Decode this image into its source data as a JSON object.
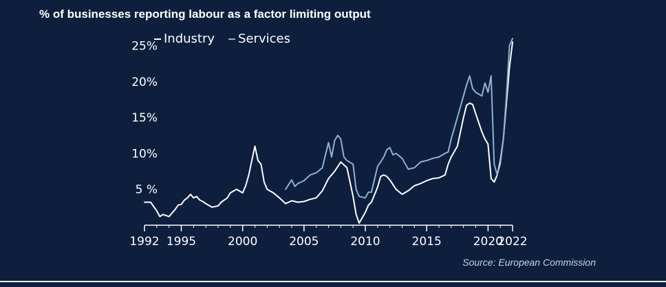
{
  "title": "% of businesses reporting labour as a factor limiting output",
  "source": "Source: European Commission",
  "colors": {
    "background": "#0d1f3d",
    "industry": "#ffffff",
    "services": "#8fb3cf"
  },
  "chart_data": {
    "type": "line",
    "title": "% of businesses reporting labour as a factor limiting output",
    "xlabel": "",
    "ylabel": "",
    "xlim": [
      1992,
      2022
    ],
    "ylim": [
      0,
      26
    ],
    "x_ticks": [
      1992,
      1995,
      2000,
      2005,
      2010,
      2015,
      2020,
      2022
    ],
    "y_ticks": [
      5,
      10,
      15,
      20,
      25
    ],
    "y_tick_labels": [
      "5 %",
      "10%",
      "15%",
      "20%",
      "25%"
    ],
    "legend": "top-left",
    "grid": false,
    "series": [
      {
        "name": "Industry",
        "color": "#ffffff",
        "points": [
          [
            1992.0,
            3.2
          ],
          [
            1992.5,
            3.2
          ],
          [
            1993.0,
            2.0
          ],
          [
            1993.25,
            1.2
          ],
          [
            1993.5,
            1.5
          ],
          [
            1994.0,
            1.2
          ],
          [
            1994.5,
            2.2
          ],
          [
            1994.75,
            2.8
          ],
          [
            1995.0,
            2.9
          ],
          [
            1995.25,
            3.5
          ],
          [
            1995.5,
            3.8
          ],
          [
            1995.75,
            4.3
          ],
          [
            1996.0,
            3.8
          ],
          [
            1996.25,
            4.0
          ],
          [
            1996.5,
            3.5
          ],
          [
            1996.75,
            3.3
          ],
          [
            1997.0,
            3.0
          ],
          [
            1997.5,
            2.5
          ],
          [
            1998.0,
            2.7
          ],
          [
            1998.25,
            3.2
          ],
          [
            1998.5,
            3.5
          ],
          [
            1998.75,
            3.8
          ],
          [
            1999.0,
            4.5
          ],
          [
            1999.5,
            5.0
          ],
          [
            2000.0,
            4.5
          ],
          [
            2000.25,
            5.5
          ],
          [
            2000.5,
            7.0
          ],
          [
            2000.75,
            9.0
          ],
          [
            2001.0,
            11.0
          ],
          [
            2001.25,
            9.0
          ],
          [
            2001.5,
            8.5
          ],
          [
            2001.75,
            6.0
          ],
          [
            2002.0,
            5.0
          ],
          [
            2002.5,
            4.5
          ],
          [
            2003.0,
            3.8
          ],
          [
            2003.5,
            3.0
          ],
          [
            2004.0,
            3.4
          ],
          [
            2004.5,
            3.2
          ],
          [
            2005.0,
            3.3
          ],
          [
            2005.5,
            3.6
          ],
          [
            2006.0,
            3.8
          ],
          [
            2006.5,
            4.8
          ],
          [
            2007.0,
            6.5
          ],
          [
            2007.5,
            7.5
          ],
          [
            2008.0,
            8.8
          ],
          [
            2008.5,
            8.0
          ],
          [
            2009.0,
            4.0
          ],
          [
            2009.25,
            1.5
          ],
          [
            2009.5,
            0.3
          ],
          [
            2010.0,
            1.8
          ],
          [
            2010.25,
            2.8
          ],
          [
            2010.5,
            3.2
          ],
          [
            2011.0,
            5.3
          ],
          [
            2011.25,
            6.8
          ],
          [
            2011.5,
            7.0
          ],
          [
            2011.75,
            6.8
          ],
          [
            2012.0,
            6.3
          ],
          [
            2012.5,
            5.0
          ],
          [
            2013.0,
            4.3
          ],
          [
            2013.5,
            4.8
          ],
          [
            2014.0,
            5.5
          ],
          [
            2014.5,
            5.8
          ],
          [
            2015.0,
            6.2
          ],
          [
            2015.5,
            6.5
          ],
          [
            2016.0,
            6.6
          ],
          [
            2016.5,
            7.0
          ],
          [
            2016.75,
            8.5
          ],
          [
            2017.0,
            9.5
          ],
          [
            2017.5,
            11.0
          ],
          [
            2018.0,
            15.0
          ],
          [
            2018.25,
            16.7
          ],
          [
            2018.5,
            17.0
          ],
          [
            2018.75,
            16.8
          ],
          [
            2019.0,
            15.5
          ],
          [
            2019.5,
            13.0
          ],
          [
            2019.75,
            12.0
          ],
          [
            2020.0,
            11.3
          ],
          [
            2020.25,
            6.5
          ],
          [
            2020.5,
            6.0
          ],
          [
            2020.75,
            7.0
          ],
          [
            2021.0,
            9.0
          ],
          [
            2021.25,
            12.0
          ],
          [
            2021.5,
            17.0
          ],
          [
            2021.75,
            22.0
          ],
          [
            2022.0,
            25.5
          ]
        ]
      },
      {
        "name": "Services",
        "color": "#8fb3cf",
        "points": [
          [
            2003.5,
            5.0
          ],
          [
            2004.0,
            6.3
          ],
          [
            2004.25,
            5.4
          ],
          [
            2004.5,
            5.8
          ],
          [
            2005.0,
            6.2
          ],
          [
            2005.5,
            7.0
          ],
          [
            2006.0,
            7.3
          ],
          [
            2006.5,
            8.0
          ],
          [
            2006.75,
            9.8
          ],
          [
            2007.0,
            11.5
          ],
          [
            2007.25,
            9.5
          ],
          [
            2007.5,
            11.8
          ],
          [
            2007.75,
            12.5
          ],
          [
            2008.0,
            12.0
          ],
          [
            2008.25,
            9.5
          ],
          [
            2008.5,
            9.0
          ],
          [
            2009.0,
            8.5
          ],
          [
            2009.25,
            5.0
          ],
          [
            2009.5,
            4.0
          ],
          [
            2010.0,
            3.8
          ],
          [
            2010.25,
            4.6
          ],
          [
            2010.5,
            4.6
          ],
          [
            2011.0,
            8.2
          ],
          [
            2011.25,
            8.8
          ],
          [
            2011.5,
            9.5
          ],
          [
            2011.75,
            10.5
          ],
          [
            2012.0,
            10.8
          ],
          [
            2012.25,
            9.8
          ],
          [
            2012.5,
            10.0
          ],
          [
            2013.0,
            9.3
          ],
          [
            2013.5,
            7.8
          ],
          [
            2014.0,
            8.0
          ],
          [
            2014.5,
            8.8
          ],
          [
            2015.0,
            9.0
          ],
          [
            2015.5,
            9.3
          ],
          [
            2016.0,
            9.5
          ],
          [
            2016.5,
            10.0
          ],
          [
            2016.75,
            10.2
          ],
          [
            2017.0,
            12.0
          ],
          [
            2017.5,
            15.0
          ],
          [
            2017.75,
            16.5
          ],
          [
            2018.0,
            18.0
          ],
          [
            2018.25,
            19.5
          ],
          [
            2018.5,
            20.8
          ],
          [
            2018.75,
            19.0
          ],
          [
            2019.0,
            18.5
          ],
          [
            2019.5,
            18.0
          ],
          [
            2019.75,
            19.8
          ],
          [
            2020.0,
            18.5
          ],
          [
            2020.25,
            20.8
          ],
          [
            2020.5,
            8.5
          ],
          [
            2020.75,
            7.0
          ],
          [
            2021.0,
            8.5
          ],
          [
            2021.25,
            12.0
          ],
          [
            2021.5,
            18.0
          ],
          [
            2021.75,
            25.0
          ],
          [
            2022.0,
            26.0
          ]
        ]
      }
    ]
  }
}
